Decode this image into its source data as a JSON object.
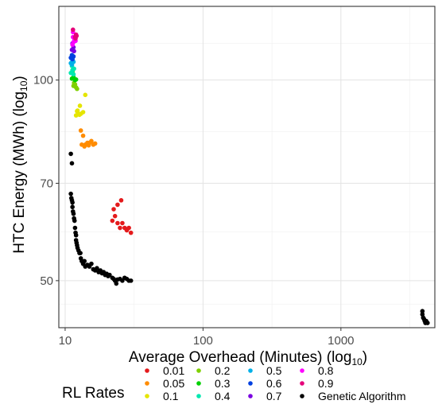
{
  "chart_data": {
    "type": "scatter",
    "xlabel": "Average Overhead (Minutes) (log",
    "xlabel_sub": "10",
    "xlabel_close": ")",
    "ylabel": "HTC Energy (MWh) (log",
    "ylabel_sub": "10",
    "ylabel_close": ")",
    "x_scale": "log",
    "y_scale": "log",
    "xlim": [
      9.0,
      4800
    ],
    "ylim": [
      42.5,
      129
    ],
    "x_ticks": [
      10,
      100,
      1000
    ],
    "x_tick_labels": [
      "10",
      "100",
      "1000"
    ],
    "y_ticks": [
      50,
      70,
      100
    ],
    "y_tick_labels": [
      "50",
      "70",
      "100"
    ],
    "grid": true,
    "legend_title": "RL Rates",
    "legend_position": "bottom",
    "series": [
      {
        "name": "0.01",
        "color": "#E41A1C",
        "points": [
          [
            22,
            61.5
          ],
          [
            23,
            62.5
          ],
          [
            24,
            61
          ],
          [
            25,
            60
          ],
          [
            26,
            61
          ],
          [
            24,
            65
          ],
          [
            25.5,
            66
          ],
          [
            27,
            60
          ],
          [
            28,
            59.5
          ],
          [
            29,
            60
          ],
          [
            30,
            59
          ],
          [
            22.5,
            64
          ]
        ]
      },
      {
        "name": "0.05",
        "color": "#FF8C00",
        "points": [
          [
            13,
            84
          ],
          [
            13.5,
            82.5
          ],
          [
            14,
            80
          ],
          [
            14.5,
            80.5
          ],
          [
            15,
            80.5
          ],
          [
            16,
            80
          ],
          [
            16.5,
            80.3
          ],
          [
            13.2,
            80
          ],
          [
            13.8,
            79.5
          ],
          [
            14.8,
            79.8
          ],
          [
            15.5,
            81
          ]
        ]
      },
      {
        "name": "0.1",
        "color": "#E5E500",
        "points": [
          [
            12,
            88.5
          ],
          [
            12.3,
            90
          ],
          [
            12.5,
            89
          ],
          [
            12.8,
            91.5
          ],
          [
            13,
            89
          ],
          [
            13.5,
            89.5
          ],
          [
            14,
            95
          ],
          [
            12.2,
            89.8
          ],
          [
            12.7,
            88.7
          ]
        ]
      },
      {
        "name": "0.2",
        "color": "#7FD000",
        "points": [
          [
            11.5,
            98
          ],
          [
            11.8,
            98.5
          ],
          [
            12,
            97.5
          ],
          [
            12.2,
            97
          ],
          [
            11.6,
            99
          ]
        ]
      },
      {
        "name": "0.3",
        "color": "#00D000",
        "points": [
          [
            11.2,
            100.5
          ],
          [
            11.5,
            101
          ],
          [
            11.8,
            100
          ],
          [
            12,
            100.2
          ],
          [
            11.3,
            103
          ]
        ]
      },
      {
        "name": "0.4",
        "color": "#00E8B0",
        "points": [
          [
            11,
            102.5
          ],
          [
            11.3,
            103.5
          ],
          [
            11.6,
            104
          ],
          [
            11.2,
            105
          ],
          [
            11.5,
            102
          ]
        ]
      },
      {
        "name": "0.5",
        "color": "#00B0E8",
        "points": [
          [
            11,
            106
          ],
          [
            11.3,
            107
          ],
          [
            11.5,
            106.5
          ],
          [
            11.2,
            105.5
          ]
        ]
      },
      {
        "name": "0.6",
        "color": "#0040E0",
        "points": [
          [
            11,
            108
          ],
          [
            11.2,
            109
          ],
          [
            11.5,
            108.5
          ],
          [
            11.3,
            107.5
          ]
        ]
      },
      {
        "name": "0.7",
        "color": "#7B00E0",
        "points": [
          [
            11.2,
            111
          ],
          [
            11.5,
            112
          ],
          [
            11.3,
            113.5
          ],
          [
            11.6,
            110.5
          ]
        ]
      },
      {
        "name": "0.8",
        "color": "#FF00FF",
        "points": [
          [
            11.5,
            114
          ],
          [
            11.7,
            115
          ],
          [
            11.9,
            114.5
          ],
          [
            11.4,
            116
          ],
          [
            11.3,
            113
          ],
          [
            11.4,
            118
          ]
        ]
      },
      {
        "name": "0.9",
        "color": "#E5007A",
        "points": [
          [
            11.8,
            116
          ],
          [
            12,
            117
          ],
          [
            12.1,
            116.5
          ],
          [
            11.9,
            115.5
          ],
          [
            11.4,
            119
          ]
        ]
      },
      {
        "name": "Genetic Algorithm",
        "color": "#000000",
        "points": [
          [
            11,
            77.5
          ],
          [
            11.2,
            75
          ],
          [
            11,
            67.5
          ],
          [
            11.1,
            66.5
          ],
          [
            11.2,
            66
          ],
          [
            11.3,
            65.5
          ],
          [
            11.3,
            64.5
          ],
          [
            11.4,
            63.5
          ],
          [
            11.5,
            63
          ],
          [
            11.6,
            62
          ],
          [
            11.7,
            61.5
          ],
          [
            11.8,
            60
          ],
          [
            11.9,
            59
          ],
          [
            12,
            58.5
          ],
          [
            12,
            57.5
          ],
          [
            12.1,
            57
          ],
          [
            12.2,
            56.5
          ],
          [
            12.3,
            56
          ],
          [
            12.5,
            55.5
          ],
          [
            12.7,
            55
          ],
          [
            12.9,
            55
          ],
          [
            13,
            54
          ],
          [
            13.2,
            53.5
          ],
          [
            13.5,
            53
          ],
          [
            13.8,
            53.5
          ],
          [
            14,
            52.5
          ],
          [
            14.5,
            52.8
          ],
          [
            15,
            52.5
          ],
          [
            15.5,
            53
          ],
          [
            16,
            52
          ],
          [
            16.5,
            51.8
          ],
          [
            17,
            52.2
          ],
          [
            17.5,
            51.5
          ],
          [
            18,
            51.8
          ],
          [
            18.5,
            51.3
          ],
          [
            19,
            51.5
          ],
          [
            19.5,
            51
          ],
          [
            20,
            51.2
          ],
          [
            20.5,
            50.8
          ],
          [
            21,
            51
          ],
          [
            22,
            50.5
          ],
          [
            22.5,
            50.3
          ],
          [
            23,
            50
          ],
          [
            23.5,
            49.5
          ],
          [
            24,
            50.2
          ],
          [
            25,
            50.3
          ],
          [
            26,
            50
          ],
          [
            27,
            50.5
          ],
          [
            28,
            50.3
          ],
          [
            29,
            50
          ],
          [
            30,
            50
          ],
          [
            3900,
            44.5
          ],
          [
            3950,
            44
          ],
          [
            4000,
            43.8
          ],
          [
            4050,
            43.5
          ],
          [
            4100,
            43.2
          ],
          [
            4150,
            43.5
          ],
          [
            4200,
            43.3
          ],
          [
            4250,
            43.2
          ],
          [
            3900,
            45
          ]
        ]
      }
    ]
  }
}
